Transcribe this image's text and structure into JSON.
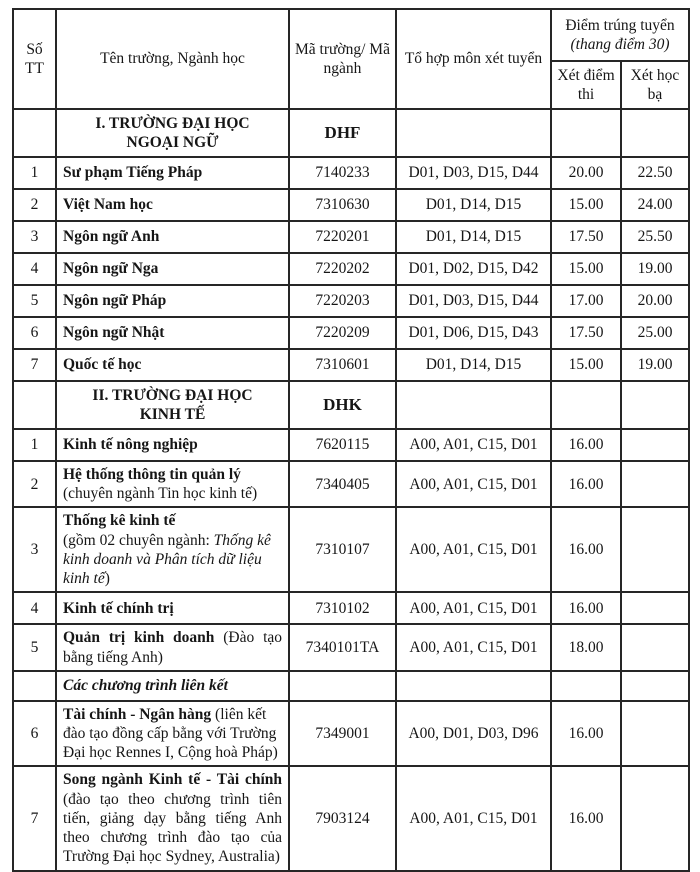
{
  "page": {
    "background": "#ffffff",
    "text_color": "#161616",
    "border_color": "#262626"
  },
  "table": {
    "header": {
      "stt": "Số TT",
      "school": "Tên trường, Ngành học",
      "code": "Mã trường/ Mã ngành",
      "combo": "Tổ hợp môn xét tuyển",
      "score_main": "Điểm trúng tuyển",
      "score_sub": "(thang điểm 30)",
      "score_exam": "Xét điểm thi",
      "score_transcript": "Xét học bạ"
    },
    "rows": [
      {
        "type": "section",
        "label": "I. TRƯỜNG ĐẠI HỌC\nNGOẠI NGỮ",
        "code": "DHF"
      },
      {
        "type": "program",
        "stt": "1",
        "name": [
          {
            "style": "bold",
            "text": "Sư phạm Tiếng Pháp"
          }
        ],
        "code": "7140233",
        "combo": "D01, D03, D15, D44",
        "exam": "20.00",
        "transcript": "22.50"
      },
      {
        "type": "program",
        "stt": "2",
        "name": [
          {
            "style": "bold",
            "text": "Việt Nam học"
          }
        ],
        "code": "7310630",
        "combo": "D01, D14, D15",
        "exam": "15.00",
        "transcript": "24.00"
      },
      {
        "type": "program",
        "stt": "3",
        "name": [
          {
            "style": "bold",
            "text": "Ngôn ngữ Anh"
          }
        ],
        "code": "7220201",
        "combo": "D01, D14, D15",
        "exam": "17.50",
        "transcript": "25.50"
      },
      {
        "type": "program",
        "stt": "4",
        "name": [
          {
            "style": "bold",
            "text": "Ngôn ngữ Nga"
          }
        ],
        "code": "7220202",
        "combo": "D01, D02, D15, D42",
        "exam": "15.00",
        "transcript": "19.00"
      },
      {
        "type": "program",
        "stt": "5",
        "name": [
          {
            "style": "bold",
            "text": "Ngôn ngữ Pháp"
          }
        ],
        "code": "7220203",
        "combo": "D01, D03, D15, D44",
        "exam": "17.00",
        "transcript": "20.00"
      },
      {
        "type": "program",
        "stt": "6",
        "name": [
          {
            "style": "bold",
            "text": "Ngôn ngữ Nhật"
          }
        ],
        "code": "7220209",
        "combo": "D01, D06, D15, D43",
        "exam": "17.50",
        "transcript": "25.00"
      },
      {
        "type": "program",
        "stt": "7",
        "name": [
          {
            "style": "bold",
            "text": "Quốc tế học"
          }
        ],
        "code": "7310601",
        "combo": "D01, D14, D15",
        "exam": "15.00",
        "transcript": "19.00"
      },
      {
        "type": "section",
        "label": "II. TRƯỜNG ĐẠI HỌC\nKINH TẾ",
        "code": "DHK"
      },
      {
        "type": "program",
        "stt": "1",
        "name": [
          {
            "style": "bold",
            "text": "Kinh tế nông nghiệp"
          }
        ],
        "code": "7620115",
        "combo": "A00, A01, C15, D01",
        "exam": "16.00",
        "transcript": ""
      },
      {
        "type": "program",
        "stt": "2",
        "name": [
          {
            "style": "bold",
            "text": "Hệ thống thông tin quản lý"
          },
          {
            "style": "regular",
            "text": " (chuyên ngành Tin học kinh tế)"
          }
        ],
        "code": "7340405",
        "combo": "A00, A01, C15, D01",
        "exam": "16.00",
        "transcript": ""
      },
      {
        "type": "program",
        "stt": "3",
        "name": [
          {
            "style": "bold",
            "text": "Thống kê kinh tế\n"
          },
          {
            "style": "regular",
            "text": "(gồm 02 chuyên ngành: "
          },
          {
            "style": "italic",
            "text": "Thống kê kinh doanh và Phân tích dữ liệu kinh tế"
          },
          {
            "style": "regular",
            "text": ")"
          }
        ],
        "code": "7310107",
        "combo": "A00, A01, C15, D01",
        "exam": "16.00",
        "transcript": ""
      },
      {
        "type": "program",
        "stt": "4",
        "name": [
          {
            "style": "bold",
            "text": "Kinh tế chính trị"
          }
        ],
        "code": "7310102",
        "combo": "A00, A01, C15, D01",
        "exam": "16.00",
        "transcript": ""
      },
      {
        "type": "program",
        "stt": "5",
        "justify": true,
        "name": [
          {
            "style": "bold",
            "text": "Quản trị kinh doanh"
          },
          {
            "style": "regular",
            "text": " (Đào tạo bằng tiếng Anh)"
          }
        ],
        "code": "7340101TA",
        "combo": "A00, A01, C15, D01",
        "exam": "18.00",
        "transcript": ""
      },
      {
        "type": "subsection",
        "label": "Các chương trình liên kết"
      },
      {
        "type": "program",
        "stt": "6",
        "name": [
          {
            "style": "bold",
            "text": "Tài chính - Ngân hàng"
          },
          {
            "style": "regular",
            "text": " (liên kết đào tạo đồng cấp bằng với Trường Đại học Rennes I, Cộng hoà Pháp)"
          }
        ],
        "code": "7349001",
        "combo": "A00, D01, D03, D96",
        "exam": "16.00",
        "transcript": ""
      },
      {
        "type": "program",
        "stt": "7",
        "justify": true,
        "name": [
          {
            "style": "bold",
            "nowrap": true,
            "text": "Song ngành Kinh tế - Tài chính"
          },
          {
            "style": "regular",
            "text": " (đào tạo theo chương trình tiên tiến, giảng dạy bằng tiếng Anh theo chương trình đào tạo của Trường Đại học Sydney, Australia)"
          }
        ],
        "code": "7903124",
        "combo": "A00, A01, C15, D01",
        "exam": "16.00",
        "transcript": ""
      }
    ]
  }
}
